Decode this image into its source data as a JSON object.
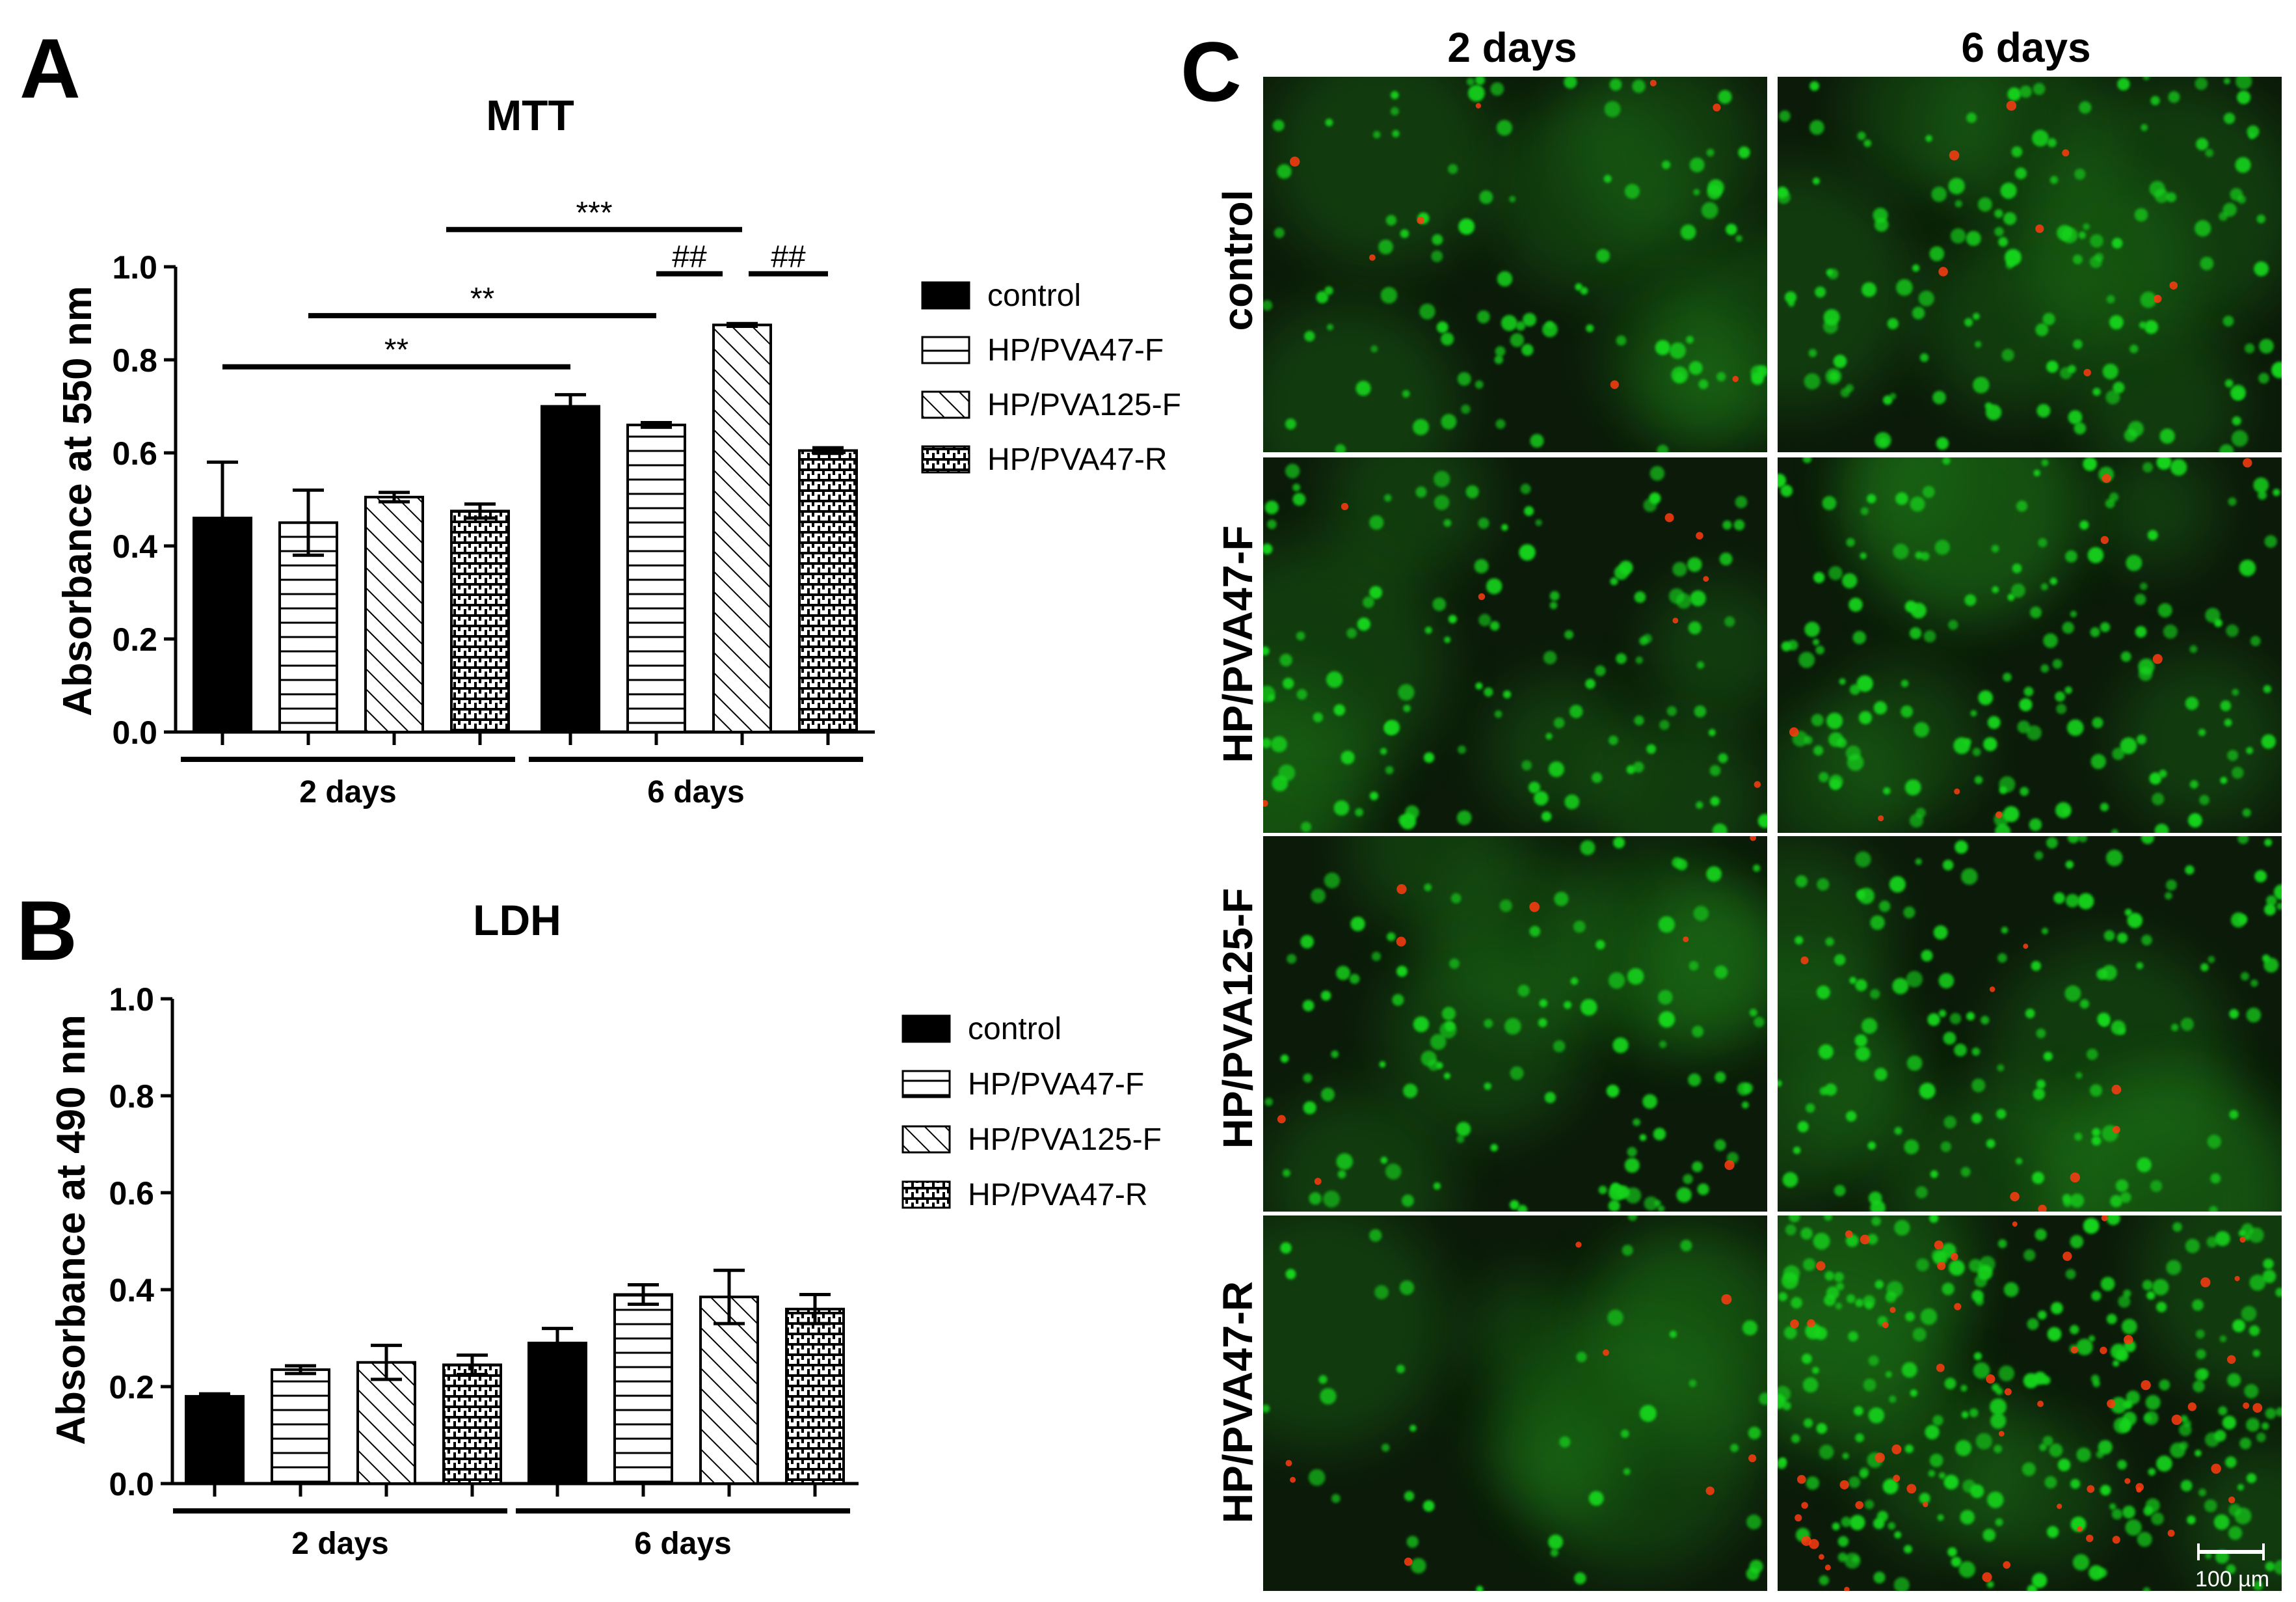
{
  "panels": {
    "A": {
      "letter": "A"
    },
    "B": {
      "letter": "B"
    },
    "C": {
      "letter": "C"
    }
  },
  "chart_data": [
    {
      "panel": "A",
      "type": "bar",
      "title": "MTT",
      "xlabel": "",
      "ylabel": "Absorbance at 550 nm",
      "ylim": [
        0,
        1.0
      ],
      "yticks": [
        "0.0",
        "0.2",
        "0.4",
        "0.6",
        "0.8",
        "1.0"
      ],
      "categories": [
        "2 days",
        "6 days"
      ],
      "series": [
        {
          "name": "control",
          "pattern": "solid",
          "values": [
            0.46,
            0.7
          ],
          "errors": [
            0.12,
            0.025
          ]
        },
        {
          "name": "HP/PVA47-F",
          "pattern": "hlines",
          "values": [
            0.45,
            0.66
          ],
          "errors": [
            0.07,
            0.005
          ]
        },
        {
          "name": "HP/PVA125-F",
          "pattern": "diagonal",
          "values": [
            0.505,
            0.875
          ],
          "errors": [
            0.01,
            0.003
          ]
        },
        {
          "name": "HP/PVA47-R",
          "pattern": "dense",
          "values": [
            0.475,
            0.605
          ],
          "errors": [
            0.015,
            0.006
          ]
        }
      ],
      "annotations": [
        {
          "text": "**",
          "from": "control-2 days",
          "to": "control-6 days"
        },
        {
          "text": "**",
          "from": "HP/PVA47-F-2 days",
          "to": "HP/PVA47-F-6 days"
        },
        {
          "text": "***",
          "from": "HP/PVA125-F-2 days",
          "to": "HP/PVA125-F-6 days"
        },
        {
          "text": "##",
          "from": "HP/PVA47-F-6 days",
          "to": "HP/PVA125-F-6 days"
        },
        {
          "text": "##",
          "from": "HP/PVA125-F-6 days",
          "to": "HP/PVA47-R-6 days"
        }
      ],
      "legend_position": "right"
    },
    {
      "panel": "B",
      "type": "bar",
      "title": "LDH",
      "xlabel": "",
      "ylabel": "Absorbance at 490 nm",
      "ylim": [
        0,
        1.0
      ],
      "yticks": [
        "0.0",
        "0.2",
        "0.4",
        "0.6",
        "0.8",
        "1.0"
      ],
      "categories": [
        "2 days",
        "6 days"
      ],
      "series": [
        {
          "name": "control",
          "pattern": "solid",
          "values": [
            0.18,
            0.29
          ],
          "errors": [
            0.005,
            0.03
          ]
        },
        {
          "name": "HP/PVA47-F",
          "pattern": "hlines",
          "values": [
            0.235,
            0.39
          ],
          "errors": [
            0.008,
            0.02
          ]
        },
        {
          "name": "HP/PVA125-F",
          "pattern": "diagonal",
          "values": [
            0.25,
            0.385
          ],
          "errors": [
            0.035,
            0.055
          ]
        },
        {
          "name": "HP/PVA47-R",
          "pattern": "dense",
          "values": [
            0.245,
            0.36
          ],
          "errors": [
            0.02,
            0.03
          ]
        }
      ],
      "legend_position": "right"
    }
  ],
  "micrographs": {
    "columns": [
      "2 days",
      "6 days"
    ],
    "rows": [
      "control",
      "HP/PVA47-F",
      "HP/PVA125-F",
      "HP/PVA47-R"
    ],
    "scale_bar": "100 µm",
    "colors": {
      "live": "#19d41a",
      "dead": "#ff3b10",
      "background": "#0c1a0a"
    }
  }
}
